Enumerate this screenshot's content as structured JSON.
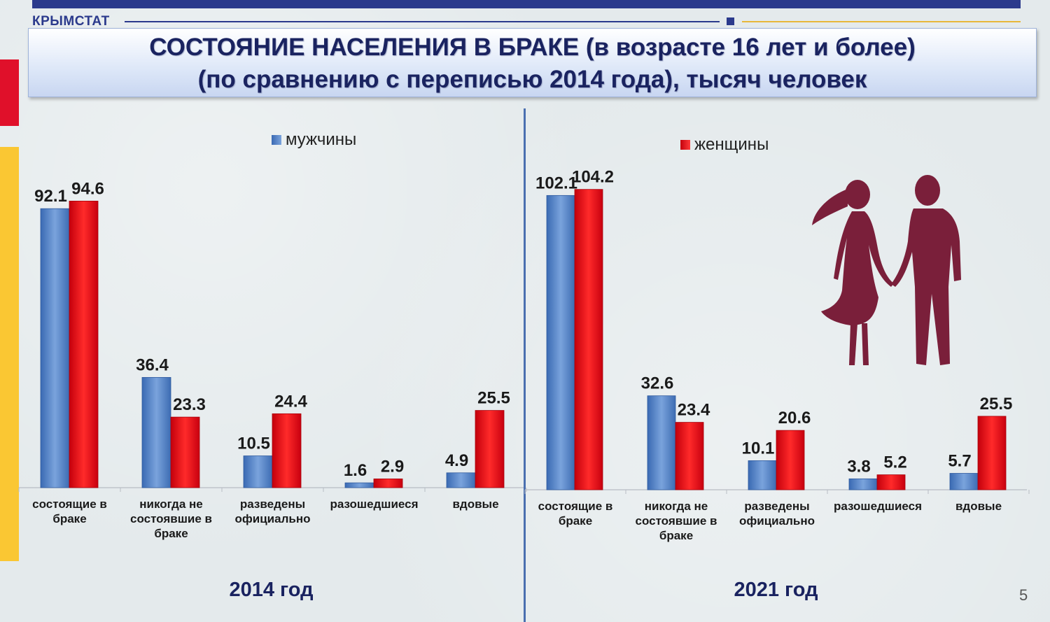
{
  "header": {
    "org": "КРЫМСТАТ",
    "title_line1": "СОСТОЯНИЕ НАСЕЛЕНИЯ В БРАКЕ (в возрасте 16 лет и более)",
    "title_line2": "(по сравнению с переписью 2014 года), тысяч человек"
  },
  "colors": {
    "men": "#4f7fc6",
    "women": "#e8101a",
    "brand": "#2b3a8c",
    "accent_red": "#e0102a",
    "accent_yellow": "#fac733",
    "silhouette": "#7a1f3a"
  },
  "legend": {
    "men": "мужчины",
    "women": "женщины"
  },
  "chart_data": [
    {
      "type": "bar",
      "xlabel": "2014 год",
      "categories": [
        [
          "состоящие в",
          "браке"
        ],
        [
          "никогда не",
          "состоявшие в",
          "браке"
        ],
        [
          "разведены",
          "официально"
        ],
        [
          "разошедшиеся"
        ],
        [
          "вдовые"
        ]
      ],
      "series": [
        {
          "name": "мужчины",
          "values": [
            92.1,
            36.4,
            10.5,
            1.6,
            4.9
          ]
        },
        {
          "name": "женщины",
          "values": [
            94.6,
            23.3,
            24.4,
            2.9,
            25.5
          ]
        }
      ],
      "ylim": [
        0,
        110
      ]
    },
    {
      "type": "bar",
      "xlabel": "2021 год",
      "categories": [
        [
          "состоящие в",
          "браке"
        ],
        [
          "никогда не",
          "состоявшие в",
          "браке"
        ],
        [
          "разведены",
          "официально"
        ],
        [
          "разошедшиеся"
        ],
        [
          "вдовые"
        ]
      ],
      "series": [
        {
          "name": "мужчины",
          "values": [
            102.1,
            32.6,
            10.1,
            3.8,
            5.7
          ]
        },
        {
          "name": "женщины",
          "values": [
            104.2,
            23.4,
            20.6,
            5.2,
            25.5
          ]
        }
      ],
      "ylim": [
        0,
        110
      ]
    }
  ],
  "page_number": "5"
}
